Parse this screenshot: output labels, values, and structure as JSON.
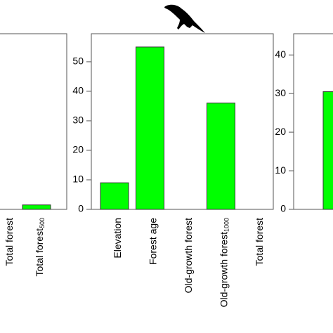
{
  "chart_data": [
    {
      "type": "bar",
      "categories": [
        "Total forest",
        "Total forest"
      ],
      "category_subscripts": [
        null,
        "500"
      ],
      "values": [
        0,
        1.5
      ],
      "color": "#00ff00",
      "ylim": [
        0,
        59.5
      ]
    },
    {
      "type": "bar",
      "categories": [
        "Elevation",
        "Forest age",
        "Old-growth forest",
        "Old-growth forest",
        "Total forest"
      ],
      "category_subscripts": [
        null,
        null,
        null,
        "1000",
        null
      ],
      "values": [
        9,
        55,
        0,
        36,
        0
      ],
      "color": "#00ff00",
      "ylim": [
        0,
        59.5
      ],
      "yticks": [
        0,
        10,
        20,
        30,
        40,
        50
      ]
    },
    {
      "type": "bar",
      "categories": [
        null
      ],
      "category_subscripts": [
        null
      ],
      "values": [
        30.5
      ],
      "color": "#00ff00",
      "ylim": [
        0,
        45.5
      ],
      "yticks": [
        0,
        10,
        20,
        30,
        40
      ]
    }
  ]
}
